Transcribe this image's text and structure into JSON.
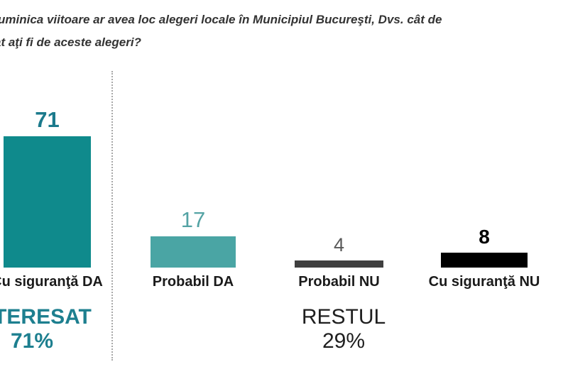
{
  "question": {
    "line1": "uminica viitoare ar avea loc alegeri locale în Municipiul Bucureşti, Dvs. cât de",
    "line2": "at aţi fi de aceste alegeri?"
  },
  "chart_data": {
    "type": "bar",
    "categories": [
      "Cu siguranţă DA",
      "Probabil DA",
      "Probabil NU",
      "Cu siguranţă NU"
    ],
    "values": [
      71,
      17,
      4,
      8
    ],
    "bar_colors": [
      "#0f8a8c",
      "#4aa5a4",
      "#3f3f3f",
      "#000000"
    ],
    "value_colors": [
      "#1b7a8c",
      "#54a3a4",
      "#595959",
      "#000000"
    ],
    "ylim": [
      0,
      75
    ],
    "grid": false,
    "legend": "none",
    "separator": "dotted line between first bar and the remaining three bars",
    "groups": [
      {
        "label": "INTERESAT",
        "value": "71%",
        "color": "#1d7f8f"
      },
      {
        "label": "RESTUL",
        "value": "29%",
        "color": "#1f1f1f"
      }
    ]
  }
}
